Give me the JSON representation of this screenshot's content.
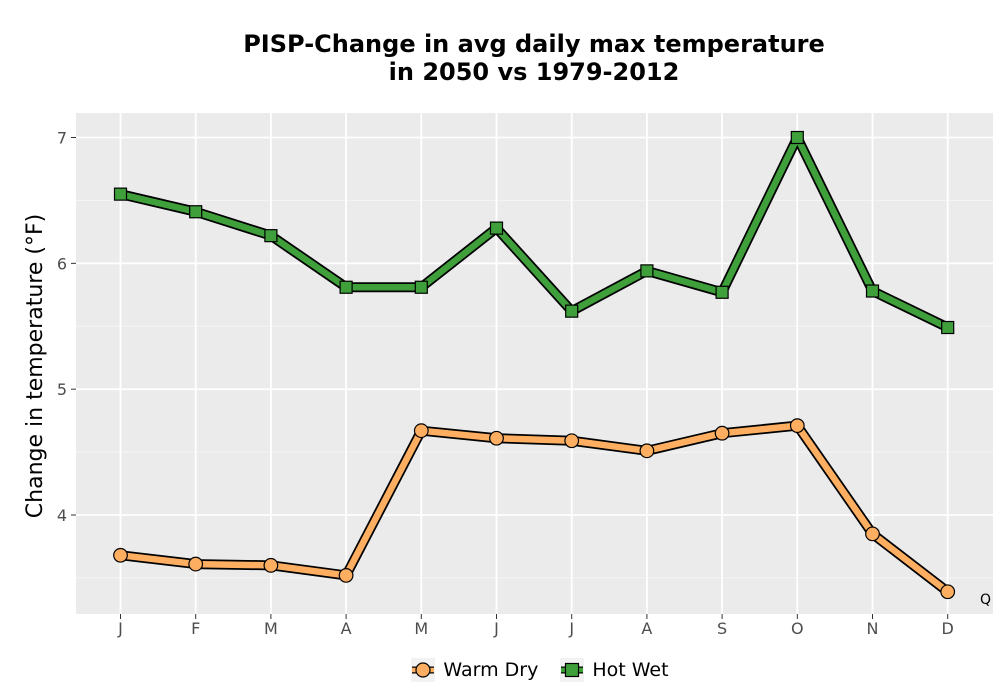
{
  "chart_data": {
    "type": "line",
    "title_lines": [
      "PISP-Change in avg daily max temperature",
      "in 2050 vs 1979-2012"
    ],
    "ylabel": "Change in temperature (°F)",
    "xlabel": "",
    "categories": [
      "J",
      "F",
      "M",
      "A",
      "M",
      "J",
      "J",
      "A",
      "S",
      "O",
      "N",
      "D"
    ],
    "y_ticks": [
      4,
      5,
      6,
      7
    ],
    "ylim": [
      3.2,
      7.2
    ],
    "grid": true,
    "legend_position": "bottom",
    "corner_note": "Q",
    "series": [
      {
        "name": "Warm Dry",
        "marker": "circle",
        "color": "#fdae61",
        "values": [
          3.68,
          3.61,
          3.6,
          3.52,
          4.67,
          4.61,
          4.59,
          4.51,
          4.65,
          4.71,
          3.85,
          3.39
        ]
      },
      {
        "name": "Hot Wet",
        "marker": "square",
        "color": "#3f9f3a",
        "values": [
          6.55,
          6.41,
          6.22,
          5.81,
          5.81,
          6.28,
          5.62,
          5.94,
          5.77,
          7.0,
          5.78,
          5.49
        ]
      }
    ]
  }
}
